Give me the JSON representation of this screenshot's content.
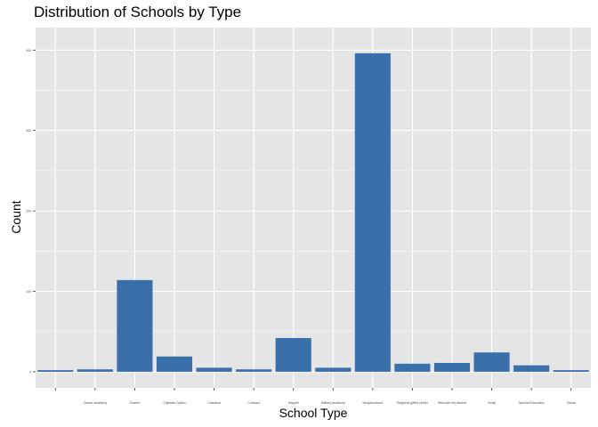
{
  "chart_data": {
    "type": "bar",
    "title": "Distribution of Schools by Type",
    "xlabel": "School Type",
    "ylabel": "Count",
    "ylim": [
      0,
      400
    ],
    "y_ticks": [
      0,
      100,
      200,
      300,
      400
    ],
    "grid": true,
    "bar_color": "#3a70aa",
    "panel_color": "#e5e5e5",
    "grid_color": "#ffffff",
    "categories": [
      "",
      "Career academy",
      "Charter",
      "Citywide-Option",
      "Classical",
      "Contract",
      "Magnet",
      "Military academy",
      "Neighborhood",
      "Regional gifted center",
      "Selective enrollment",
      "Small",
      "Special Education",
      "Virtual"
    ],
    "values": [
      2,
      3,
      114,
      19,
      5,
      3,
      42,
      5,
      396,
      10,
      11,
      24,
      8,
      2
    ]
  }
}
